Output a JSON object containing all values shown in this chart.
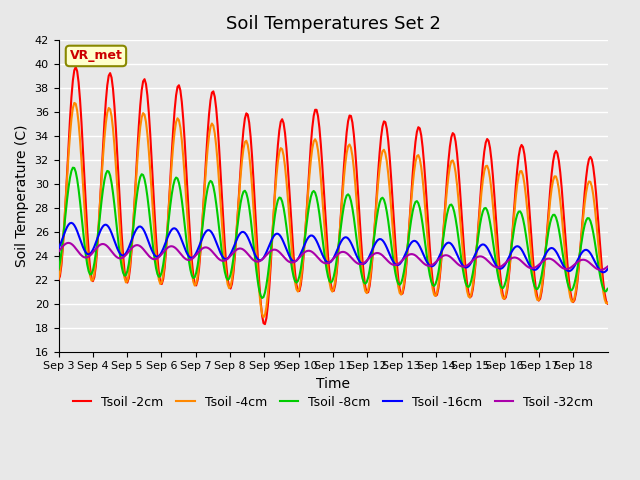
{
  "title": "Soil Temperatures Set 2",
  "xlabel": "Time",
  "ylabel": "Soil Temperature (C)",
  "ylim": [
    16,
    42
  ],
  "yticks": [
    16,
    18,
    20,
    22,
    24,
    26,
    28,
    30,
    32,
    34,
    36,
    38,
    40,
    42
  ],
  "x_labels": [
    "Sep 3",
    "Sep 4",
    "Sep 5",
    "Sep 6",
    "Sep 7",
    "Sep 8",
    "Sep 9",
    "Sep 10",
    "Sep 11",
    "Sep 12",
    "Sep 13",
    "Sep 14",
    "Sep 15",
    "Sep 16",
    "Sep 17",
    "Sep 18"
  ],
  "annotation_text": "VR_met",
  "annotation_color": "#cc0000",
  "annotation_bg": "#ffffcc",
  "annotation_border": "#888800",
  "series": {
    "Tsoil -2cm": {
      "color": "#ff0000",
      "lw": 1.5
    },
    "Tsoil -4cm": {
      "color": "#ff8800",
      "lw": 1.5
    },
    "Tsoil -8cm": {
      "color": "#00cc00",
      "lw": 1.5
    },
    "Tsoil -16cm": {
      "color": "#0000ff",
      "lw": 1.5
    },
    "Tsoil -32cm": {
      "color": "#aa00aa",
      "lw": 1.5
    }
  },
  "background_color": "#e8e8e8",
  "plot_bg": "#e8e8e8",
  "grid_color": "#ffffff",
  "title_fontsize": 13,
  "axis_fontsize": 10,
  "tick_fontsize": 8,
  "legend_fontsize": 9
}
